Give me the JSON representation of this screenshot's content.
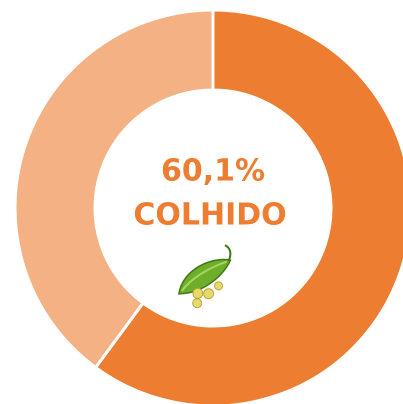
{
  "chart_data": {
    "type": "pie",
    "donut": true,
    "values": [
      60.1,
      39.9
    ],
    "value_labels": [
      "60,1%",
      null
    ],
    "colors": [
      "#ED7D31",
      "#F4B183"
    ],
    "center_text": "COLHIDO"
  }
}
